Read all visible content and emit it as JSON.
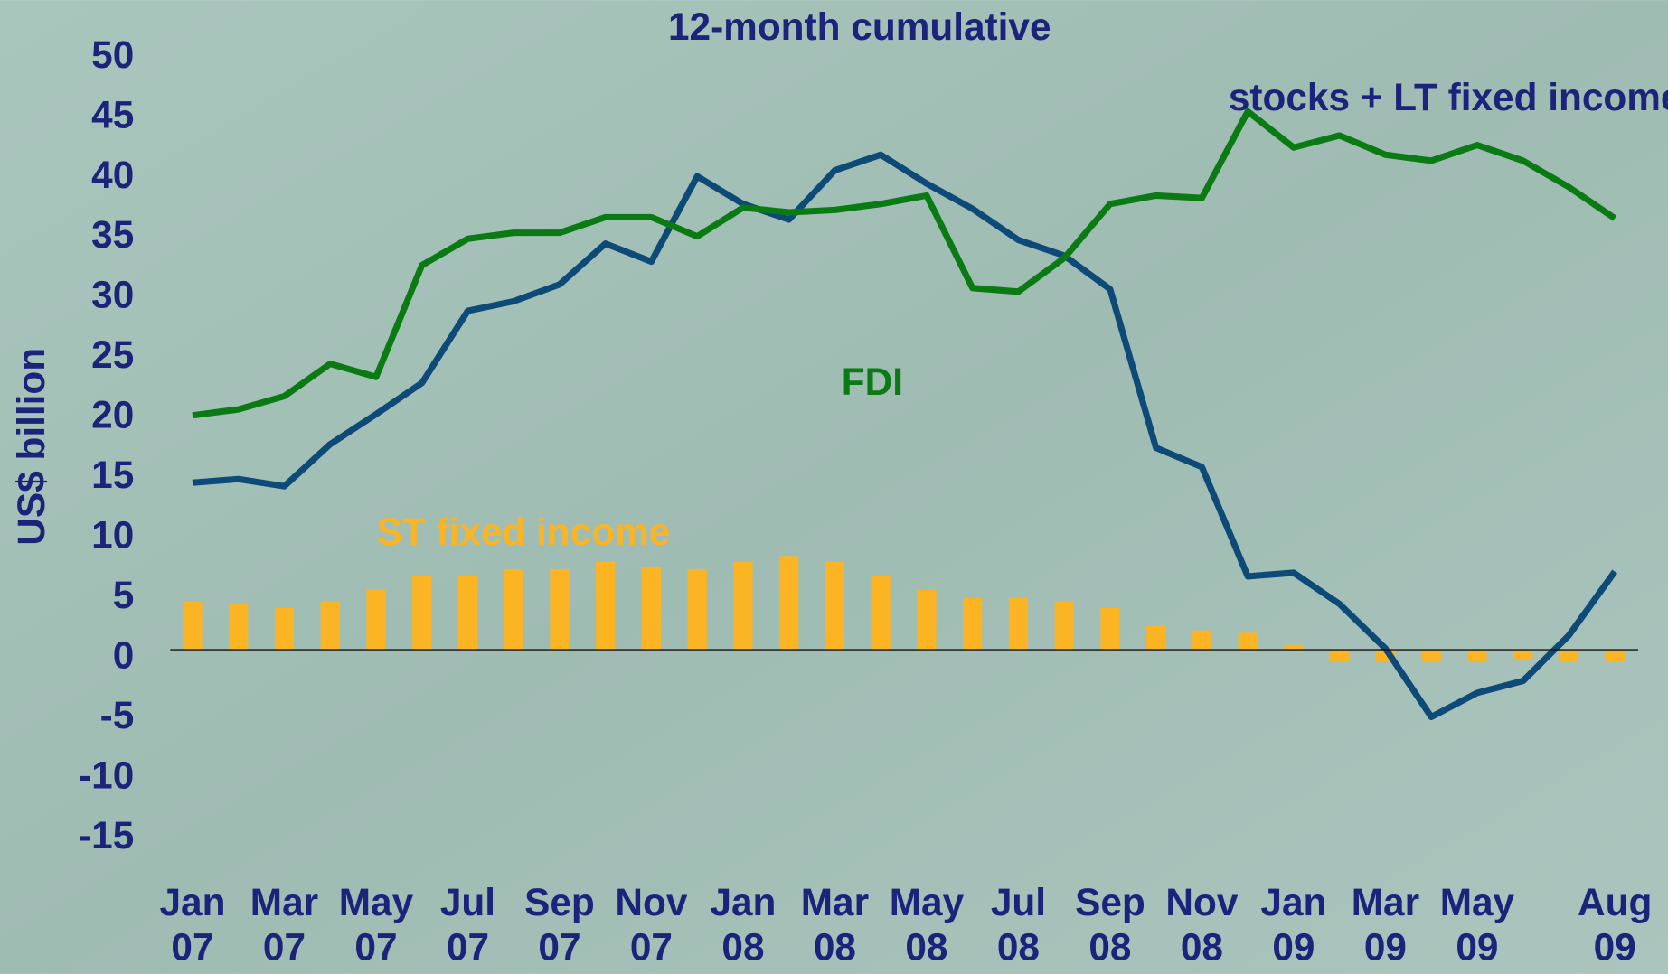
{
  "chart_data": {
    "type": "line",
    "title": "12-month cumulative",
    "y_label": "US$ billion",
    "categories": [
      "Jan 07",
      null,
      "Mar 07",
      null,
      "May 07",
      null,
      "Jul 07",
      null,
      "Sep 07",
      null,
      "Nov 07",
      null,
      "Jan 08",
      null,
      "Mar 08",
      null,
      "May 08",
      null,
      "Jul 08",
      null,
      "Sep 08",
      null,
      "Nov 08",
      null,
      "Jan 09",
      null,
      "Mar 09",
      null,
      "May 09",
      null,
      null,
      "Aug 09"
    ],
    "series": [
      {
        "name": "stocks + LT fixed income",
        "type": "line",
        "color": "#0e4a78",
        "values": [
          13.9,
          14.2,
          13.6,
          17.1,
          19.6,
          22.2,
          28.2,
          29.0,
          30.4,
          33.8,
          32.3,
          39.4,
          37.1,
          35.8,
          39.9,
          41.2,
          38.8,
          36.7,
          34.1,
          32.8,
          30.0,
          16.8,
          15.2,
          6.1,
          6.4,
          3.8,
          0.1,
          -5.6,
          -3.6,
          -2.6,
          1.2,
          6.5
        ]
      },
      {
        "name": "FDI",
        "type": "line",
        "color": "#0a7a12",
        "values": [
          19.5,
          20.0,
          21.1,
          23.8,
          22.7,
          32.0,
          34.2,
          34.7,
          34.7,
          36.0,
          36.0,
          34.4,
          36.8,
          36.4,
          36.6,
          37.1,
          37.8,
          30.1,
          29.8,
          32.6,
          37.1,
          37.8,
          37.6,
          44.8,
          41.8,
          42.8,
          41.2,
          40.7,
          42.0,
          40.7,
          38.5,
          35.9
        ]
      },
      {
        "name": "ST fixed income",
        "type": "bar",
        "color": "#fbb423",
        "values": [
          4.0,
          3.8,
          3.5,
          4.0,
          5.0,
          6.2,
          6.2,
          6.7,
          6.7,
          7.3,
          6.9,
          6.7,
          7.3,
          7.8,
          7.3,
          6.2,
          5.0,
          4.3,
          4.3,
          4.0,
          3.5,
          2.0,
          1.6,
          1.4,
          0.4,
          -1.0,
          -1.0,
          -1.0,
          -1.0,
          -0.8,
          -1.0,
          -1.0
        ]
      }
    ],
    "ylim": [
      -15,
      50
    ],
    "yticks": [
      -15,
      -10,
      -5,
      0,
      5,
      10,
      15,
      20,
      25,
      30,
      35,
      40,
      45,
      50
    ],
    "grid": false
  }
}
